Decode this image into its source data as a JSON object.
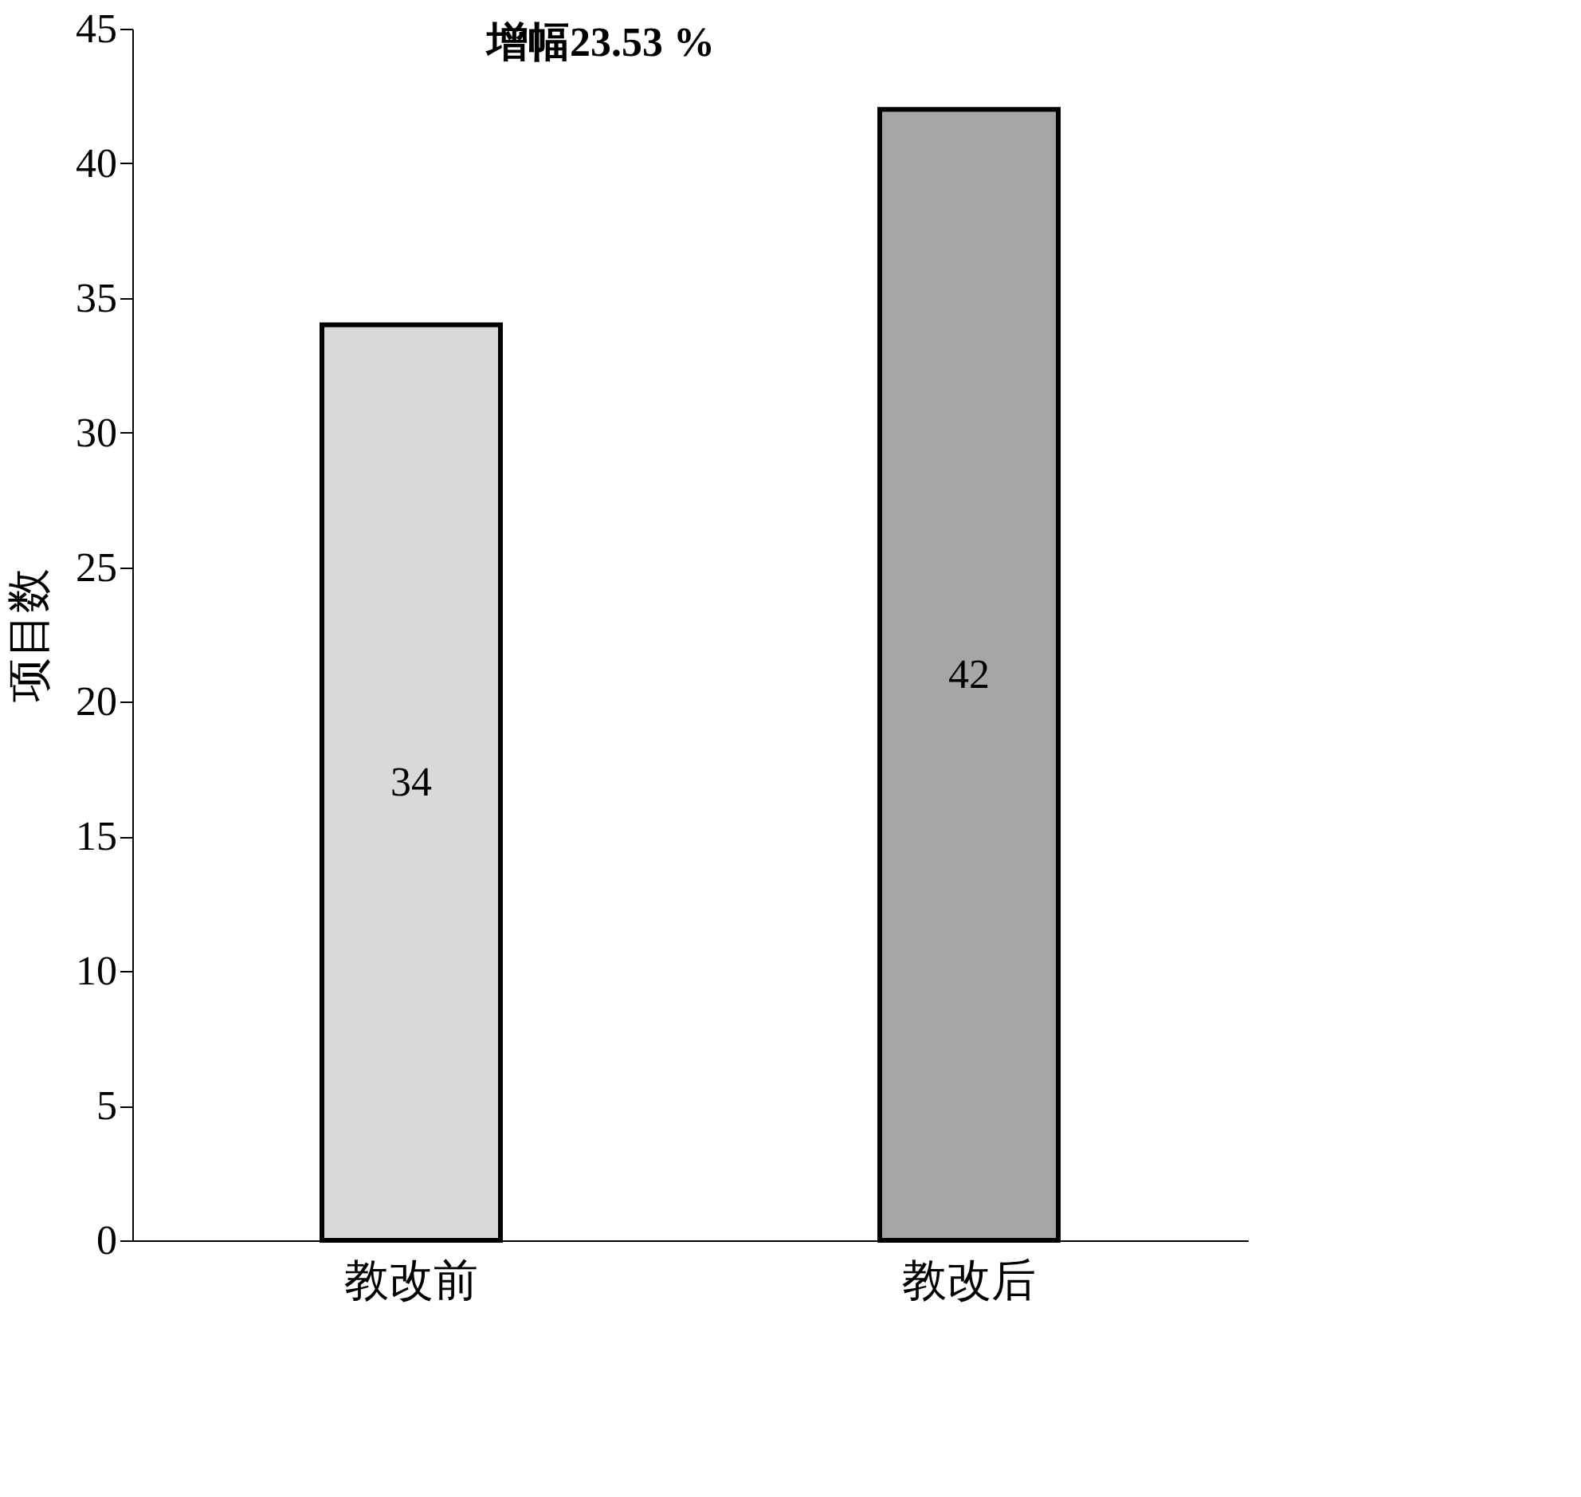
{
  "chart_data": {
    "type": "bar",
    "categories": [
      "教改前",
      "教改后"
    ],
    "values": [
      34,
      42
    ],
    "colors": [
      "#d9d9d9",
      "#a6a6a6"
    ],
    "ylabel": "项目数",
    "ylim": [
      0,
      45
    ],
    "yticks": [
      0,
      5,
      10,
      15,
      20,
      25,
      30,
      35,
      40,
      45
    ],
    "data_labels": true,
    "annotations": [
      "增幅23.53 %"
    ],
    "grid": false
  }
}
